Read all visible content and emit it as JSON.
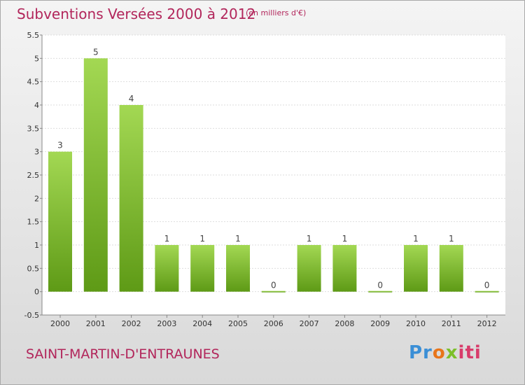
{
  "header": {
    "title": "Subventions Versées 2000 à 2012",
    "unit": "(en milliers d'€)"
  },
  "footer": {
    "commune": "SAINT-MARTIN-D'ENTRAUNES",
    "logo_parts": [
      "Pr",
      "o",
      "x",
      "iti"
    ]
  },
  "colors": {
    "title": "#b2265b",
    "bar_top": "#a3d853",
    "bar_bottom": "#5e9a16",
    "plot_bg": "#ffffff"
  },
  "chart_data": {
    "type": "bar",
    "categories": [
      "2000",
      "2001",
      "2002",
      "2003",
      "2004",
      "2005",
      "2006",
      "2007",
      "2008",
      "2009",
      "2010",
      "2011",
      "2012"
    ],
    "values": [
      3,
      5,
      4,
      1,
      1,
      1,
      0,
      1,
      1,
      0,
      1,
      1,
      0
    ],
    "value_labels": [
      "3",
      "5",
      "4",
      "1",
      "1",
      "1",
      "0",
      "1",
      "1",
      "0",
      "1",
      "1",
      "0"
    ],
    "y_ticks": [
      "-0.5",
      "0",
      "0.5",
      "1",
      "1.5",
      "2",
      "2.5",
      "3",
      "3.5",
      "4",
      "4.5",
      "5",
      "5.5"
    ],
    "ylim": [
      -0.5,
      5.5
    ],
    "grid": true
  }
}
